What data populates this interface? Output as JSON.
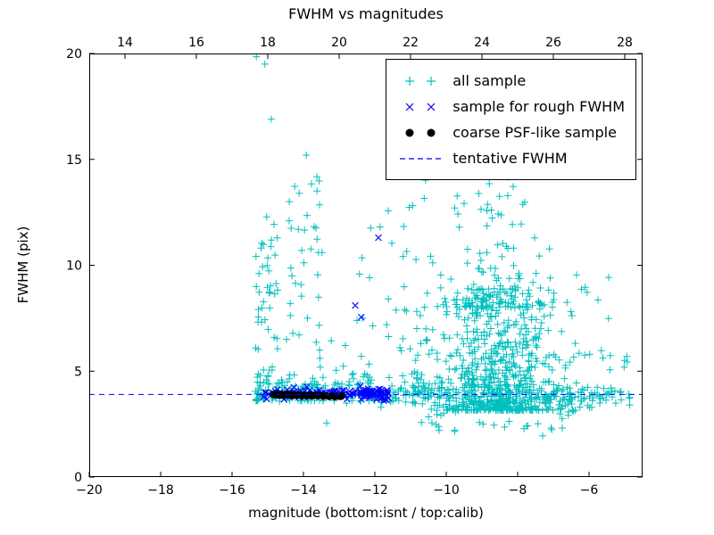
{
  "chart_data": {
    "type": "scatter",
    "title": "FWHM vs magnitudes",
    "xlabel": "magnitude (bottom:isnt / top:calib)",
    "ylabel": "FWHM (pix)",
    "xlim": [
      -20,
      -4.5
    ],
    "ylim": [
      0,
      20
    ],
    "x_ticks_bottom": {
      "values": [
        -20,
        -18,
        -16,
        -14,
        -12,
        -10,
        -8,
        -6
      ],
      "labels": [
        "−20",
        "−18",
        "−16",
        "−14",
        "−12",
        "−10",
        "−8",
        "−6"
      ]
    },
    "x_ticks_top": {
      "values": [
        14,
        16,
        18,
        20,
        22,
        24,
        26,
        28
      ],
      "labels": [
        "14",
        "16",
        "18",
        "20",
        "22",
        "24",
        "26",
        "28"
      ],
      "offset_top_minus_bottom": 33
    },
    "y_ticks": {
      "values": [
        0,
        5,
        10,
        15,
        20
      ],
      "labels": [
        "0",
        "5",
        "10",
        "15",
        "20"
      ]
    },
    "tentative_fwhm": 3.9,
    "seed": 13,
    "legend": {
      "position": "upper right",
      "entries": [
        {
          "label": "all sample",
          "marker": "plus",
          "color": "#00bfbf"
        },
        {
          "label": "sample for rough FWHM",
          "marker": "cross",
          "color": "#0000ff"
        },
        {
          "label": "coarse PSF-like sample",
          "marker": "dot",
          "color": "#000000"
        },
        {
          "label": "tentative FWHM",
          "marker": "dashed-line",
          "color": "#0000ff"
        }
      ]
    },
    "series": [
      {
        "name": "all sample",
        "marker": "plus",
        "color": "#00bfbf",
        "points": [
          [
            -15.32,
            19.85
          ],
          [
            -15.08,
            19.5
          ],
          [
            -14.9,
            16.9
          ],
          [
            -13.92,
            15.2
          ],
          [
            -14.12,
            13.4
          ],
          [
            -13.55,
            12.85
          ],
          [
            -14.4,
            12.1
          ],
          [
            -9.15,
            15.35
          ],
          [
            -8.9,
            14.85
          ],
          [
            -9.5,
            14.3
          ],
          [
            -6.35,
            9.55
          ],
          [
            -13.35,
            2.55
          ],
          [
            -10.2,
            2.2
          ],
          [
            -7.3,
            1.95
          ]
        ],
        "clusters": [
          {
            "count": 75,
            "x": {
              "dist": "uniform",
              "min": -15.35,
              "max": -14.72
            },
            "y": {
              "dist": "pow",
              "min": 3.6,
              "max": 12.5,
              "pow": 2.0
            }
          },
          {
            "count": 70,
            "x": {
              "dist": "uniform",
              "min": -14.5,
              "max": -13.52
            },
            "y": {
              "dist": "pow",
              "min": 3.6,
              "max": 15.0,
              "pow": 2.4
            }
          },
          {
            "count": 55,
            "x": {
              "dist": "uniform",
              "min": -13.5,
              "max": -11.05
            },
            "y": {
              "dist": "pow",
              "min": 3.6,
              "max": 13.0,
              "pow": 3.0
            }
          },
          {
            "count": 80,
            "x": {
              "dist": "uniform",
              "min": -15.3,
              "max": -12.0
            },
            "y": {
              "dist": "normal",
              "mean": 4.15,
              "sd": 0.35,
              "min": 3.4,
              "max": 5.4
            }
          },
          {
            "count": 650,
            "x": {
              "dist": "normal",
              "mean": -8.5,
              "sd": 0.95,
              "min": -10.6,
              "max": -5.8
            },
            "y": {
              "dist": "pow",
              "min": 3.15,
              "max": 8.9,
              "pow": 1.9
            }
          },
          {
            "count": 130,
            "x": {
              "dist": "normal",
              "mean": -8.8,
              "sd": 0.8,
              "min": -10.5,
              "max": -6.9
            },
            "y": {
              "dist": "pow",
              "min": 8.0,
              "max": 15.4,
              "pow": 2.2
            }
          },
          {
            "count": 220,
            "x": {
              "dist": "uniform",
              "min": -12.2,
              "max": -4.85
            },
            "y": {
              "dist": "normal",
              "mean": 3.9,
              "sd": 0.28,
              "min": 3.2,
              "max": 4.7
            }
          },
          {
            "count": 18,
            "x": {
              "dist": "uniform",
              "min": -6.6,
              "max": -4.9
            },
            "y": {
              "dist": "pow",
              "min": 5.0,
              "max": 9.7,
              "pow": 1.5
            }
          },
          {
            "count": 30,
            "x": {
              "dist": "uniform",
              "min": -10.8,
              "max": -6.2
            },
            "y": {
              "dist": "uniform",
              "min": 2.1,
              "max": 3.2
            }
          },
          {
            "count": 45,
            "x": {
              "dist": "uniform",
              "min": -11.3,
              "max": -10.45
            },
            "y": {
              "dist": "pow",
              "min": 4.2,
              "max": 14.5,
              "pow": 2.6
            }
          }
        ]
      },
      {
        "name": "sample for rough FWHM",
        "marker": "cross",
        "color": "#0000ff",
        "points": [
          [
            -11.9,
            11.3
          ],
          [
            -12.55,
            8.1
          ],
          [
            -12.38,
            7.55
          ]
        ],
        "clusters": [
          {
            "count": 95,
            "x": {
              "dist": "uniform",
              "min": -15.15,
              "max": -11.55
            },
            "y": {
              "dist": "normal",
              "mean": 3.95,
              "sd": 0.12,
              "min": 3.6,
              "max": 4.35
            }
          },
          {
            "count": 45,
            "x": {
              "dist": "uniform",
              "min": -12.4,
              "max": -11.6
            },
            "y": {
              "dist": "normal",
              "mean": 3.95,
              "sd": 0.13,
              "min": 3.6,
              "max": 4.35
            }
          }
        ]
      },
      {
        "name": "coarse PSF-like sample",
        "marker": "dot",
        "color": "#000000",
        "points": [
          [
            -14.85,
            3.9
          ],
          [
            -14.8,
            3.87
          ],
          [
            -14.74,
            3.92
          ],
          [
            -14.68,
            3.86
          ],
          [
            -14.62,
            3.9
          ],
          [
            -14.57,
            3.85
          ],
          [
            -14.52,
            3.89
          ],
          [
            -14.46,
            3.92
          ],
          [
            -14.41,
            3.86
          ],
          [
            -14.35,
            3.9
          ],
          [
            -14.3,
            3.84
          ],
          [
            -14.24,
            3.88
          ],
          [
            -14.18,
            3.85
          ],
          [
            -14.12,
            3.89
          ],
          [
            -14.05,
            3.83
          ],
          [
            -13.98,
            3.87
          ],
          [
            -13.9,
            3.84
          ],
          [
            -13.83,
            3.88
          ],
          [
            -13.76,
            3.82
          ],
          [
            -13.68,
            3.86
          ],
          [
            -13.6,
            3.83
          ],
          [
            -13.52,
            3.86
          ],
          [
            -13.44,
            3.81
          ],
          [
            -13.36,
            3.84
          ],
          [
            -13.28,
            3.8
          ],
          [
            -13.2,
            3.83
          ],
          [
            -13.12,
            3.79
          ],
          [
            -13.04,
            3.82
          ],
          [
            -12.97,
            3.8
          ],
          [
            -12.92,
            3.83
          ]
        ],
        "clusters": []
      },
      {
        "name": "tentative FWHM",
        "marker": "dashed-line",
        "color": "#0000ff",
        "y": 3.9
      }
    ]
  }
}
